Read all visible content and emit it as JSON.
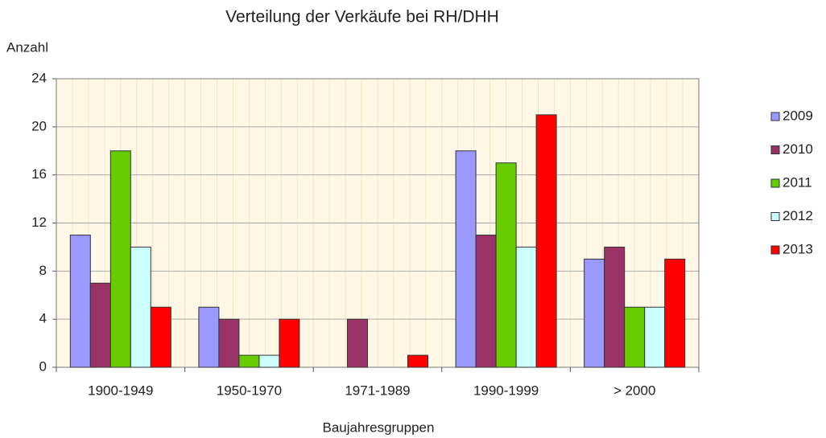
{
  "chart_data": {
    "type": "bar",
    "title": "Verteilung der Verkäufe bei RH/DHH",
    "y_label": "Anzahl",
    "x_label": "Baujahresgruppen",
    "categories": [
      "1900-1949",
      "1950-1970",
      "1971-1989",
      "1990-1999",
      "> 2000"
    ],
    "series": [
      {
        "name": "2009",
        "color": "#9999ff",
        "values": [
          11,
          5,
          0,
          18,
          9
        ]
      },
      {
        "name": "2010",
        "color": "#993366",
        "values": [
          7,
          4,
          4,
          11,
          10
        ]
      },
      {
        "name": "2011",
        "color": "#66cc00",
        "values": [
          18,
          1,
          0,
          17,
          5
        ]
      },
      {
        "name": "2012",
        "color": "#ccffff",
        "values": [
          10,
          1,
          0,
          10,
          5
        ]
      },
      {
        "name": "2013",
        "color": "#ff0000",
        "values": [
          5,
          4,
          1,
          21,
          9
        ]
      }
    ],
    "ylim": [
      0,
      24
    ],
    "yticks": [
      0,
      4,
      8,
      12,
      16,
      20,
      24
    ],
    "grid": true,
    "legend": "right"
  }
}
